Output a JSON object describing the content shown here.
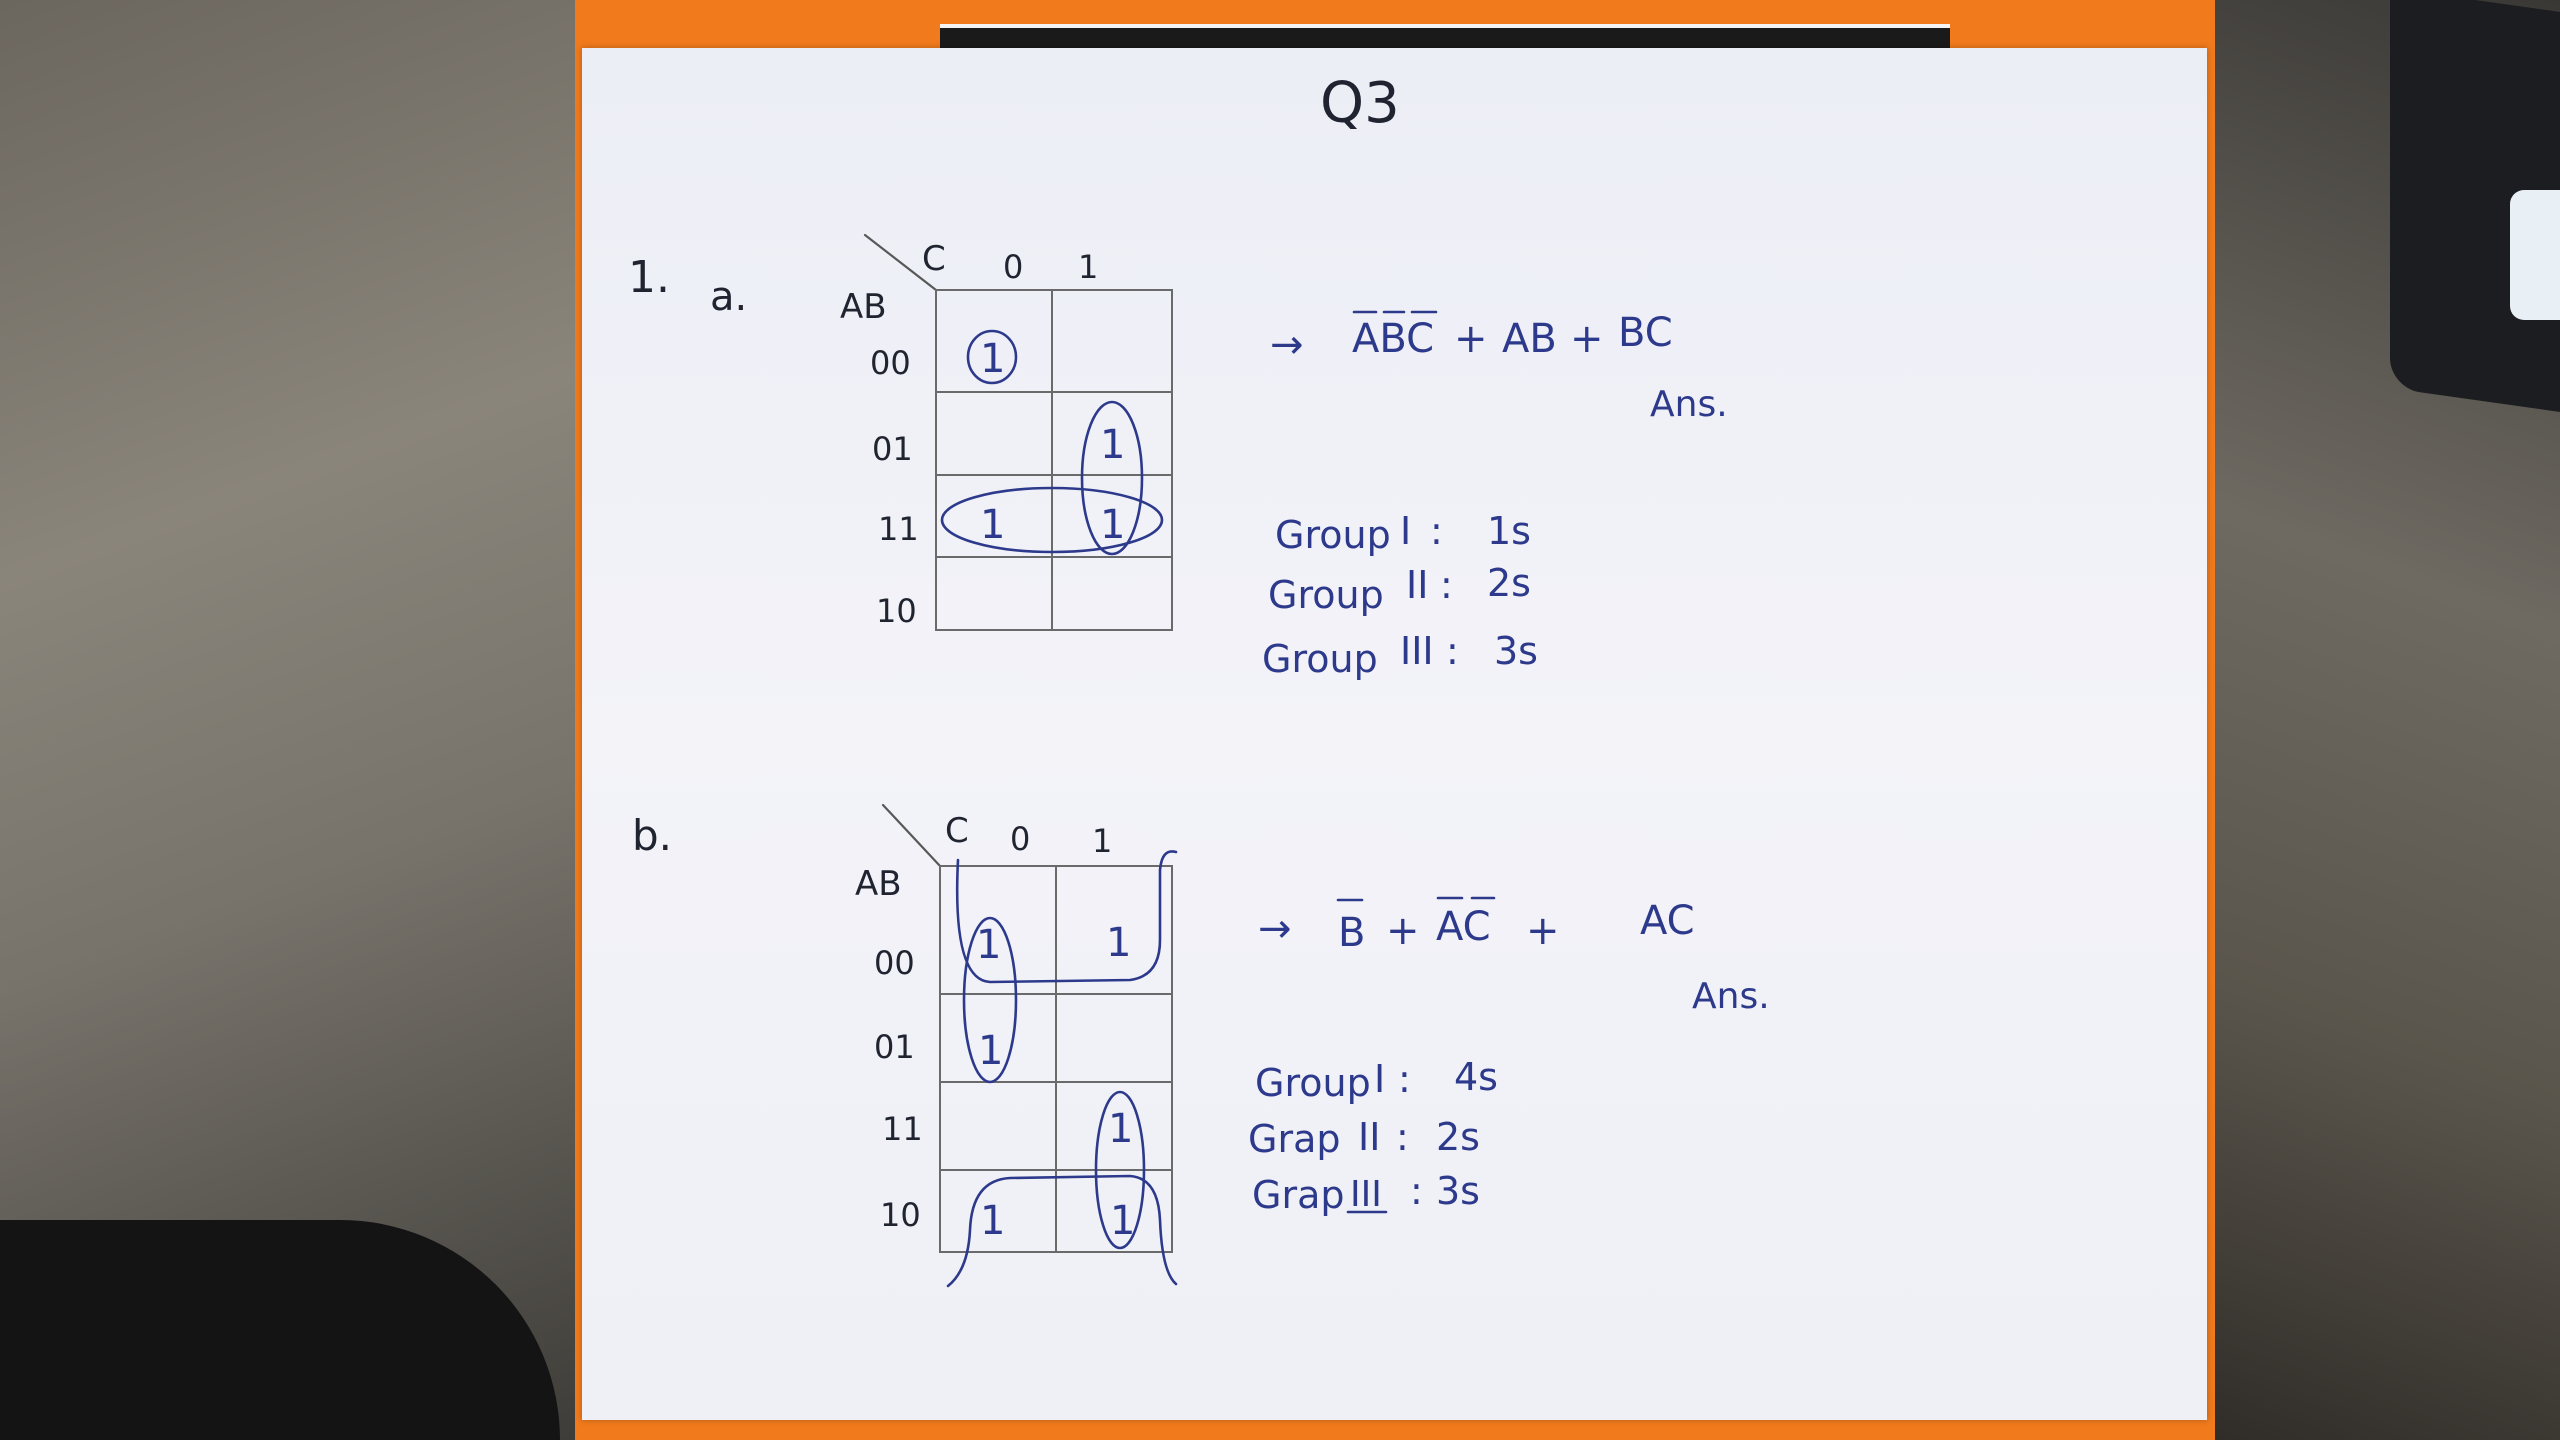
{
  "title": "Q3",
  "part_a": {
    "number": "1.",
    "letter": "a.",
    "kmap": {
      "var_col": "C",
      "var_row": "AB",
      "col_headers": [
        "0",
        "1"
      ],
      "row_headers": [
        "00",
        "01",
        "11",
        "10"
      ],
      "cells": [
        [
          "1",
          ""
        ],
        [
          "",
          "1"
        ],
        [
          "1",
          "1"
        ],
        [
          "",
          ""
        ]
      ]
    },
    "expression": {
      "arrow": "→",
      "term1": "ABC",
      "plus1": "+",
      "term2": "AB",
      "plus2": "+",
      "term3": "BC"
    },
    "ans": "Ans.",
    "groups": [
      {
        "label": "Group",
        "numeral": "I",
        "sep": ":",
        "value": "1s"
      },
      {
        "label": "Group",
        "numeral": "II",
        "sep": ":",
        "value": "2s"
      },
      {
        "label": "Group",
        "numeral": "III",
        "sep": ":",
        "value": "3s"
      }
    ]
  },
  "part_b": {
    "letter": "b.",
    "kmap": {
      "var_col": "C",
      "var_row": "AB",
      "col_headers": [
        "0",
        "1"
      ],
      "row_headers": [
        "00",
        "01",
        "11",
        "10"
      ],
      "cells": [
        [
          "1",
          "1"
        ],
        [
          "1",
          ""
        ],
        [
          "",
          "1"
        ],
        [
          "1",
          "1"
        ]
      ]
    },
    "expression": {
      "arrow": "→",
      "term1": "B",
      "plus1": "+",
      "term2": "AC",
      "plus2": "+",
      "term3": "AC"
    },
    "ans": "Ans.",
    "groups": [
      {
        "label": "Group",
        "numeral": "I",
        "sep": ":",
        "value": "4s"
      },
      {
        "label": "Grap",
        "numeral": "II",
        "sep": ":",
        "value": "2s"
      },
      {
        "label": "Grap",
        "numeral": "III",
        "sep": ":",
        "value": "3s"
      }
    ]
  }
}
